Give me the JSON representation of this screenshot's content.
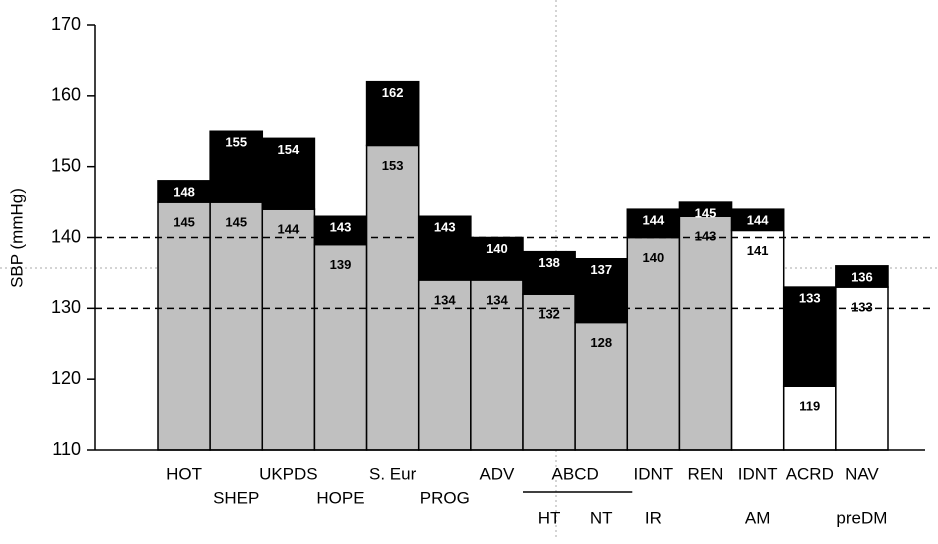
{
  "chart_data": {
    "type": "range-bar",
    "y_label": "SBP (mmHg)",
    "categories": [
      "HOT",
      "SHEP",
      "UKPDS",
      "HOPE",
      "S. Eur",
      "PROG",
      "ADV",
      "HT",
      "NT",
      "IR",
      "REN",
      "AM",
      "ACRD",
      "preDM"
    ],
    "groups": [
      {
        "label": "ABCD",
        "start": 7,
        "end": 8
      },
      {
        "label": "IDNT",
        "start": 9,
        "end": 9
      },
      {
        "label": "IDNT",
        "start": 11,
        "end": 11
      },
      {
        "label": "NAV",
        "start": 13,
        "end": 13
      }
    ],
    "lower": {
      "values": [
        145,
        145,
        144,
        139,
        153,
        134,
        134,
        132,
        128,
        140,
        143,
        141,
        119,
        133
      ],
      "colors": [
        "#c0c0c0",
        "#c0c0c0",
        "#c0c0c0",
        "#c0c0c0",
        "#c0c0c0",
        "#c0c0c0",
        "#c0c0c0",
        "#c0c0c0",
        "#c0c0c0",
        "#c0c0c0",
        "#c0c0c0",
        "#ffffff",
        "#ffffff",
        "#ffffff"
      ]
    },
    "upper": {
      "values": [
        148,
        155,
        154,
        143,
        162,
        143,
        140,
        138,
        137,
        144,
        145,
        144,
        133,
        136
      ],
      "color": "#000000"
    },
    "ylim": [
      110,
      170
    ],
    "yticks": [
      110,
      120,
      130,
      140,
      150,
      160,
      170
    ],
    "reference_lines": [
      140,
      130
    ]
  }
}
